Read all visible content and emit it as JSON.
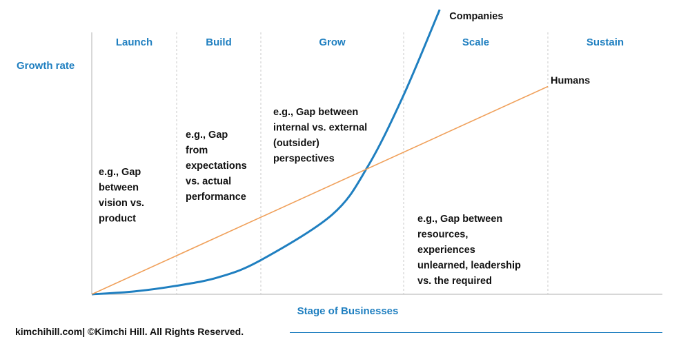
{
  "chart_data": {
    "type": "line",
    "ylabel": "Growth rate",
    "xlabel": "Stage of Businesses",
    "stages": [
      "Launch",
      "Build",
      "Grow",
      "Scale",
      "Sustain"
    ],
    "series": [
      {
        "name": "Companies",
        "shape": "exponential",
        "color": "#1f7fc0",
        "points": [
          [
            0,
            0.0
          ],
          [
            0.5,
            0.01
          ],
          [
            1,
            0.03
          ],
          [
            1.5,
            0.06
          ],
          [
            2,
            0.12
          ],
          [
            2.5,
            0.28
          ],
          [
            2.75,
            0.45
          ],
          [
            3,
            0.7
          ],
          [
            3.25,
            1.0
          ]
        ]
      },
      {
        "name": "Humans",
        "shape": "linear",
        "color": "#f0a05a",
        "points": [
          [
            0,
            0.0
          ],
          [
            4.0,
            0.73
          ]
        ]
      }
    ],
    "annotations": [
      {
        "stage": "Launch",
        "lines": [
          "e.g., Gap",
          "between",
          "vision vs.",
          "product"
        ]
      },
      {
        "stage": "Build",
        "lines": [
          "e.g., Gap",
          "from",
          "expectations",
          "vs. actual",
          "performance"
        ]
      },
      {
        "stage": "Grow",
        "lines": [
          "e.g., Gap between",
          "internal vs. external",
          "(outsider)",
          "perspectives"
        ]
      },
      {
        "stage": "Scale",
        "lines": [
          "e.g., Gap between",
          "resources,",
          "experiences",
          "unlearned, leadership",
          "vs. the required"
        ]
      }
    ],
    "grid": "dashed vertical separators between stages"
  },
  "footer": {
    "text": "kimchihill.com| ©Kimchi Hill. All Rights Reserved."
  },
  "colors": {
    "accent": "#1f7fc0",
    "humans_line": "#f0a05a",
    "separator": "#c8c8c8"
  }
}
